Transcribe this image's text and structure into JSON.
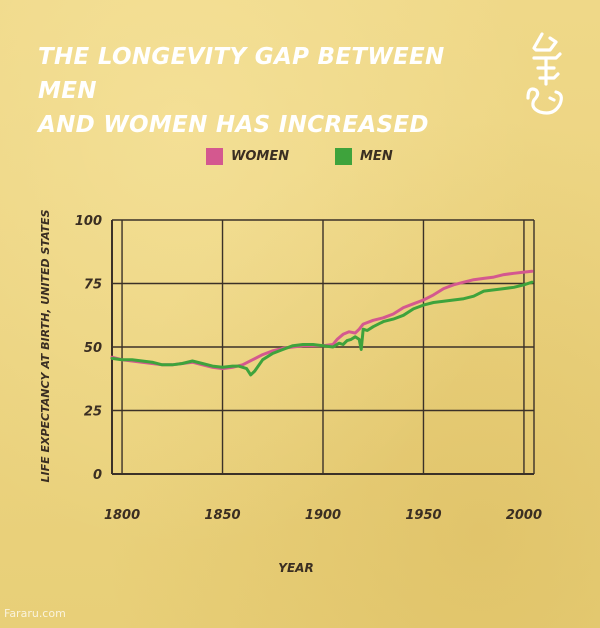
{
  "header": {
    "title_line1": "THE LONGEVITY GAP BETWEEN MEN",
    "title_line2": "AND WOMEN HAS INCREASED"
  },
  "watermark": "Fararu.com",
  "colors": {
    "women": "#d4588f",
    "men": "#3ea33c",
    "grid": "#3b3128",
    "text": "#3a2e22",
    "title": "#ffffff"
  },
  "chart_data": {
    "type": "line",
    "title": "THE LONGEVITY GAP BETWEEN MEN AND WOMEN HAS INCREASED",
    "xlabel": "YEAR",
    "ylabel": "LIFE EXPECTANCY AT BIRTH, UNITED STATES",
    "xlim": [
      1795,
      2005
    ],
    "ylim": [
      0,
      100
    ],
    "xticks": [
      1800,
      1850,
      1900,
      1950,
      2000
    ],
    "yticks": [
      0,
      25,
      50,
      75,
      100
    ],
    "grid": true,
    "legend_position": "top-center",
    "series": [
      {
        "name": "WOMEN",
        "color": "#d4588f",
        "points": [
          [
            1795,
            46
          ],
          [
            1800,
            45
          ],
          [
            1805,
            44.5
          ],
          [
            1810,
            44
          ],
          [
            1815,
            43.5
          ],
          [
            1820,
            43
          ],
          [
            1825,
            43
          ],
          [
            1830,
            43.5
          ],
          [
            1835,
            44
          ],
          [
            1840,
            43
          ],
          [
            1845,
            42
          ],
          [
            1850,
            41.5
          ],
          [
            1855,
            42
          ],
          [
            1860,
            43
          ],
          [
            1865,
            45
          ],
          [
            1870,
            47
          ],
          [
            1875,
            48.5
          ],
          [
            1880,
            49.5
          ],
          [
            1885,
            50
          ],
          [
            1890,
            50.5
          ],
          [
            1895,
            50.5
          ],
          [
            1900,
            50.5
          ],
          [
            1905,
            51
          ],
          [
            1907,
            53
          ],
          [
            1910,
            55
          ],
          [
            1913,
            56
          ],
          [
            1916,
            55.5
          ],
          [
            1918,
            57
          ],
          [
            1920,
            59
          ],
          [
            1925,
            60.5
          ],
          [
            1930,
            61.5
          ],
          [
            1935,
            63
          ],
          [
            1940,
            65.5
          ],
          [
            1945,
            67
          ],
          [
            1950,
            68.5
          ],
          [
            1955,
            70.5
          ],
          [
            1960,
            73
          ],
          [
            1965,
            74.5
          ],
          [
            1970,
            75.5
          ],
          [
            1975,
            76.5
          ],
          [
            1980,
            77
          ],
          [
            1985,
            77.5
          ],
          [
            1990,
            78.5
          ],
          [
            1995,
            79
          ],
          [
            2000,
            79.5
          ],
          [
            2004,
            79.8
          ]
        ]
      },
      {
        "name": "MEN",
        "color": "#3ea33c",
        "points": [
          [
            1795,
            45.5
          ],
          [
            1800,
            45
          ],
          [
            1805,
            45
          ],
          [
            1810,
            44.5
          ],
          [
            1815,
            44
          ],
          [
            1820,
            43
          ],
          [
            1825,
            43
          ],
          [
            1830,
            43.5
          ],
          [
            1835,
            44.5
          ],
          [
            1840,
            43.5
          ],
          [
            1845,
            42.5
          ],
          [
            1850,
            42
          ],
          [
            1855,
            42.5
          ],
          [
            1858,
            42.5
          ],
          [
            1862,
            41.5
          ],
          [
            1864,
            39
          ],
          [
            1866,
            40.5
          ],
          [
            1870,
            45
          ],
          [
            1875,
            47.5
          ],
          [
            1880,
            49
          ],
          [
            1885,
            50.5
          ],
          [
            1890,
            51
          ],
          [
            1895,
            51
          ],
          [
            1900,
            50.5
          ],
          [
            1905,
            50
          ],
          [
            1908,
            51.5
          ],
          [
            1910,
            51
          ],
          [
            1912,
            52.5
          ],
          [
            1914,
            53
          ],
          [
            1916,
            54
          ],
          [
            1918,
            53
          ],
          [
            1919,
            49
          ],
          [
            1920,
            57
          ],
          [
            1922,
            56.5
          ],
          [
            1925,
            58
          ],
          [
            1930,
            60
          ],
          [
            1935,
            61
          ],
          [
            1940,
            62.5
          ],
          [
            1945,
            65
          ],
          [
            1950,
            66.5
          ],
          [
            1955,
            67.5
          ],
          [
            1960,
            68
          ],
          [
            1965,
            68.5
          ],
          [
            1970,
            69
          ],
          [
            1975,
            70
          ],
          [
            1980,
            72
          ],
          [
            1985,
            72.5
          ],
          [
            1990,
            73
          ],
          [
            1995,
            73.5
          ],
          [
            2000,
            74.5
          ],
          [
            2004,
            75.5
          ]
        ]
      }
    ]
  }
}
